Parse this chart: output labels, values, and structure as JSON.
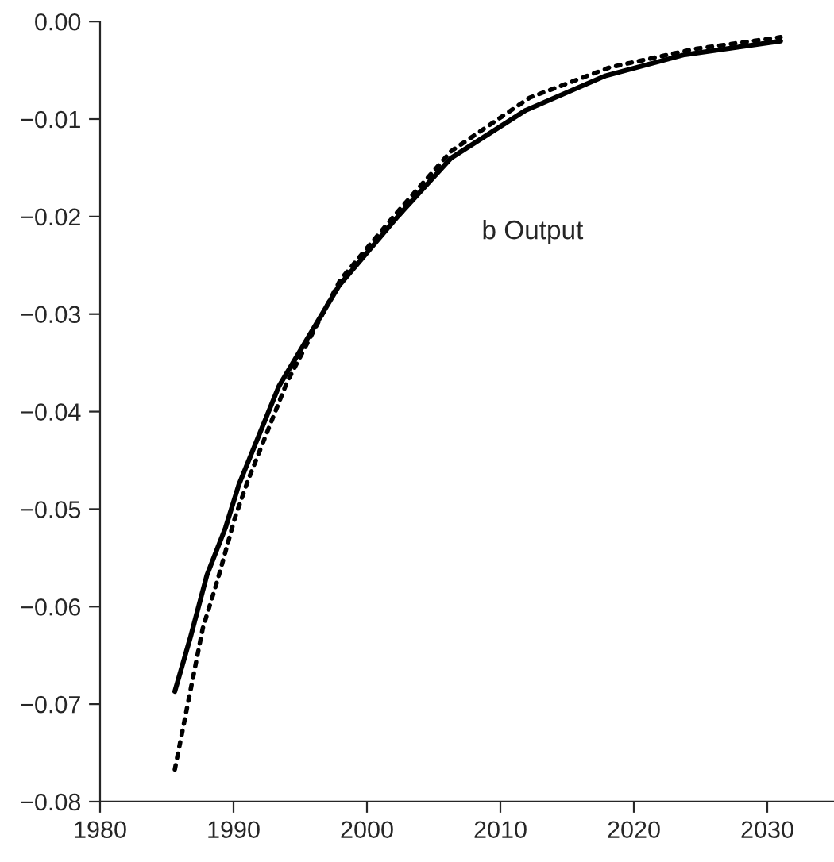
{
  "chart_data": {
    "type": "line",
    "xlim": [
      1980,
      2035
    ],
    "ylim": [
      -0.08,
      0
    ],
    "xticks": [
      1980,
      1990,
      2000,
      2010,
      2020,
      2030
    ],
    "yticks": [
      {
        "value": 0,
        "label": "0.00"
      },
      {
        "value": -0.01,
        "label": "−0.01"
      },
      {
        "value": -0.02,
        "label": "−0.02"
      },
      {
        "value": -0.03,
        "label": "−0.03"
      },
      {
        "value": -0.04,
        "label": "−0.04"
      },
      {
        "value": -0.05,
        "label": "−0.05"
      },
      {
        "value": -0.06,
        "label": "−0.06"
      },
      {
        "value": -0.07,
        "label": "−0.07"
      },
      {
        "value": -0.08,
        "label": "−0.08"
      }
    ],
    "grid": false,
    "legend": false,
    "annotations": [
      "b Output"
    ],
    "series": [
      {
        "color": "#000000",
        "line_style": "solid",
        "x": [
          1985.6,
          1986.8,
          1988,
          1989.4,
          1990.4,
          1993.4,
          1997.9,
          2002.3,
          2006.3,
          2011.9,
          2017.8,
          2023.8,
          2031
        ],
        "values": [
          -0.0687,
          -0.063,
          -0.0568,
          -0.0519,
          -0.0475,
          -0.0374,
          -0.0271,
          -0.02,
          -0.014,
          -0.0091,
          -0.0056,
          -0.0034,
          -0.002
        ]
      },
      {
        "color": "#000000",
        "line_style": "dotted",
        "x": [
          1985.6,
          1986.6,
          1987.7,
          1988.8,
          1990.1,
          1991.1,
          1994,
          1998,
          2002.3,
          2006.3,
          2012.2,
          2018.2,
          2024.6,
          2031
        ],
        "values": [
          -0.0767,
          -0.0698,
          -0.0622,
          -0.0573,
          -0.0509,
          -0.047,
          -0.037,
          -0.0265,
          -0.0195,
          -0.0133,
          -0.0078,
          -0.0047,
          -0.0028,
          -0.0016
        ]
      }
    ]
  }
}
